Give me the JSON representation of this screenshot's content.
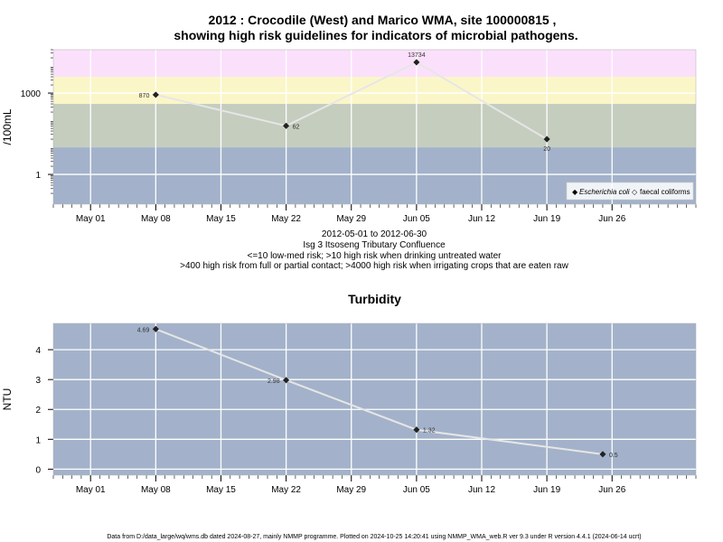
{
  "header": {
    "title_line1": "2012 : Crocodile (West) and Marico WMA, site 100000815 ,",
    "title_line2": "showing high risk guidelines for indicators of microbial pathogens."
  },
  "subtitle": {
    "range": "2012-05-01 to 2012-06-30",
    "site": "Isg 3 Itsoseng Tributary Confluence",
    "risk1": "<=10 low-med risk; >10 high risk when drinking untreated water",
    "risk2": ">400 high risk from full or partial contact; >4000 high risk when irrigating crops that are eaten raw"
  },
  "footer": "Data from D:/data_large/wq/wms.db dated 2024-08-27, mainly NMMP programme. Plotted on 2024-10-25 14:20:41 using NMMP_WMA_web.R ver 9.3 under R version 4.4.1 (2024-06-14 ucrt)",
  "chart_data": [
    {
      "type": "line",
      "scale": "log10",
      "ylabel": "/100mL",
      "yticks": [
        {
          "value": 1,
          "label": "1"
        },
        {
          "value": 1000,
          "label": "1000"
        }
      ],
      "xticks": [
        "May 01",
        "May 08",
        "May 15",
        "May 22",
        "May 29",
        "Jun 05",
        "Jun 12",
        "Jun 19",
        "Jun 26"
      ],
      "xlim": [
        "2012-04-27",
        "2012-07-05"
      ],
      "ylim": [
        0.08,
        40000
      ],
      "grid": true,
      "risk_bands": [
        {
          "from": 0.08,
          "to": 10,
          "color": "#a3b2ca"
        },
        {
          "from": 10,
          "to": 400,
          "color": "#c5cdbf"
        },
        {
          "from": 400,
          "to": 4000,
          "color": "#fbf6c8"
        },
        {
          "from": 4000,
          "to": 40000,
          "color": "#fbe0fb"
        }
      ],
      "series": [
        {
          "name": "Escherichia coli",
          "marker": "filled-diamond",
          "points": [
            {
              "date": "2012-05-08",
              "value": 870,
              "label": "870"
            },
            {
              "date": "2012-05-22",
              "value": 62,
              "label": "62"
            },
            {
              "date": "2012-06-05",
              "value": 13734,
              "label": "13734"
            },
            {
              "date": "2012-06-19",
              "value": 20,
              "label": "20"
            }
          ]
        }
      ],
      "legend": {
        "position": "bottom-right",
        "items": [
          {
            "label": "Escherichia coli",
            "symbol": "◆",
            "italic": true
          },
          {
            "label": "faecal coliforms",
            "symbol": "◇",
            "italic": false
          }
        ]
      }
    },
    {
      "type": "line",
      "title": "Turbidity",
      "ylabel": "NTU",
      "yticks": [
        {
          "value": 0,
          "label": "0"
        },
        {
          "value": 1,
          "label": "1"
        },
        {
          "value": 2,
          "label": "2"
        },
        {
          "value": 3,
          "label": "3"
        },
        {
          "value": 4,
          "label": "4"
        }
      ],
      "xticks": [
        "May 01",
        "May 08",
        "May 15",
        "May 22",
        "May 29",
        "Jun 05",
        "Jun 12",
        "Jun 19",
        "Jun 26"
      ],
      "xlim": [
        "2012-04-27",
        "2012-07-05"
      ],
      "ylim": [
        -0.2,
        4.88
      ],
      "grid": true,
      "background": "#a3b2ca",
      "series": [
        {
          "marker": "filled-diamond",
          "points": [
            {
              "date": "2012-05-08",
              "value": 4.69,
              "label": "4.69"
            },
            {
              "date": "2012-05-22",
              "value": 2.98,
              "label": "2.98"
            },
            {
              "date": "2012-06-05",
              "value": 1.32,
              "label": "1.32"
            },
            {
              "date": "2012-06-25",
              "value": 0.5,
              "label": "0.5"
            }
          ]
        }
      ]
    }
  ]
}
